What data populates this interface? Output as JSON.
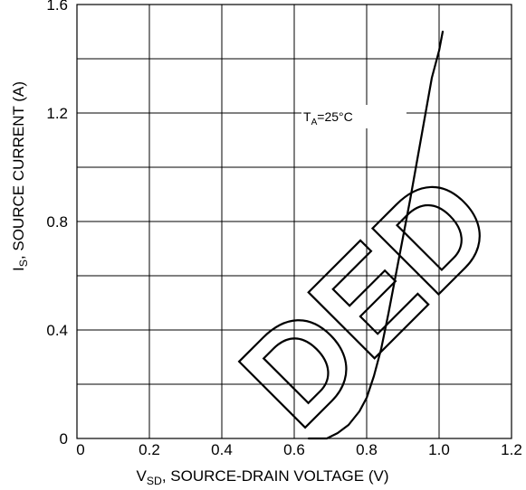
{
  "chart_data": {
    "type": "line",
    "x_label": {
      "prefix": "V",
      "sub": "SD",
      "rest": ", SOURCE-DRAIN VOLTAGE (V)"
    },
    "y_label": {
      "prefix": "I",
      "sub": "S",
      "rest": ", SOURCE CURRENT (A)"
    },
    "xlim": [
      0,
      1.2
    ],
    "ylim": [
      0,
      1.6
    ],
    "x_ticks": [
      0,
      0.2,
      0.4,
      0.6,
      0.8,
      1.0,
      1.2
    ],
    "x_tick_labels": [
      "0",
      "0.2",
      "0.4",
      "0.6",
      "0.8",
      "1.0",
      "1.2"
    ],
    "y_ticks": [
      0,
      0.4,
      0.8,
      1.2,
      1.6
    ],
    "y_tick_labels": [
      "0",
      "0.4",
      "0.8",
      "1.2",
      "1.6"
    ],
    "grid": true,
    "grid_x_step": 0.2,
    "grid_y_step": 0.2,
    "annotation": {
      "prefix": "T",
      "sub": "A",
      "rest": "=25°C"
    },
    "series": [
      {
        "x": [
          0.64,
          0.69,
          0.72,
          0.75,
          0.78,
          0.8,
          0.82,
          0.84,
          0.86,
          0.88,
          0.9,
          0.92,
          0.94,
          0.96,
          0.98,
          1.0,
          1.01
        ],
        "y": [
          0.0,
          0.0,
          0.02,
          0.05,
          0.1,
          0.15,
          0.23,
          0.33,
          0.46,
          0.6,
          0.74,
          0.88,
          1.03,
          1.18,
          1.33,
          1.43,
          1.5
        ]
      }
    ]
  },
  "watermark_text": "DED"
}
